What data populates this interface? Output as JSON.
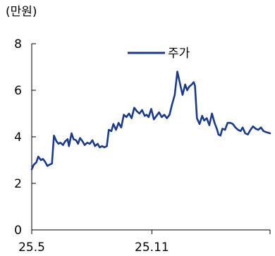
{
  "chart_data": {
    "type": "line",
    "unit_label": "(만원)",
    "title": "",
    "xlabel": "",
    "ylabel": "",
    "ylim": [
      0,
      8
    ],
    "yticks": [
      0,
      2,
      4,
      6,
      8
    ],
    "xlim": [
      "2025-05-01",
      "2026-05-01"
    ],
    "xticks": [
      {
        "label": "25.5",
        "date": "2025-05-01"
      },
      {
        "label": "25.11",
        "date": "2025-11-01"
      },
      {
        "label": "",
        "date": "2026-05-01"
      }
    ],
    "grid": false,
    "legend": {
      "placement": "top-center"
    },
    "line_color": "#1a3a8c",
    "series": [
      {
        "name": "주가",
        "x": [
          "2025-05-01",
          "2025-05-04",
          "2025-05-08",
          "2025-05-11",
          "2025-05-15",
          "2025-05-18",
          "2025-05-21",
          "2025-05-25",
          "2025-05-28",
          "2025-06-01",
          "2025-06-04",
          "2025-06-08",
          "2025-06-11",
          "2025-06-14",
          "2025-06-18",
          "2025-06-21",
          "2025-06-25",
          "2025-06-27",
          "2025-07-01",
          "2025-07-04",
          "2025-07-08",
          "2025-07-11",
          "2025-07-14",
          "2025-07-18",
          "2025-07-21",
          "2025-07-25",
          "2025-07-29",
          "2025-08-02",
          "2025-08-06",
          "2025-08-10",
          "2025-08-13",
          "2025-08-17",
          "2025-08-20",
          "2025-08-24",
          "2025-08-27",
          "2025-08-31",
          "2025-09-03",
          "2025-09-07",
          "2025-09-11",
          "2025-09-15",
          "2025-09-19",
          "2025-09-23",
          "2025-09-27",
          "2025-10-01",
          "2025-10-05",
          "2025-10-09",
          "2025-10-13",
          "2025-10-17",
          "2025-10-21",
          "2025-10-24",
          "2025-10-27",
          "2025-10-31",
          "2025-11-04",
          "2025-11-08",
          "2025-11-12",
          "2025-11-16",
          "2025-11-20",
          "2025-11-24",
          "2025-11-28",
          "2025-12-02",
          "2025-12-06",
          "2025-12-10",
          "2025-12-14",
          "2025-12-18",
          "2025-12-22",
          "2025-12-25",
          "2025-12-28",
          "2026-01-01",
          "2026-01-04",
          "2026-01-06",
          "2026-01-09",
          "2026-01-13",
          "2026-01-17",
          "2026-01-20",
          "2026-01-24",
          "2026-01-28",
          "2026-02-01",
          "2026-02-05",
          "2026-02-09",
          "2026-02-11",
          "2026-02-14",
          "2026-02-17",
          "2026-02-21",
          "2026-02-25",
          "2026-03-01",
          "2026-03-05",
          "2026-03-09",
          "2026-03-13",
          "2026-03-17",
          "2026-03-20",
          "2026-03-24",
          "2026-03-28",
          "2026-04-01",
          "2026-04-05",
          "2026-04-09",
          "2026-04-13",
          "2026-04-17",
          "2026-04-21",
          "2026-04-25",
          "2026-05-01"
        ],
        "values": [
          2.6,
          2.8,
          2.9,
          3.15,
          3.0,
          3.05,
          2.95,
          2.75,
          2.8,
          2.85,
          4.05,
          3.8,
          3.7,
          3.75,
          3.65,
          3.8,
          3.9,
          3.6,
          4.15,
          3.9,
          3.85,
          3.7,
          3.95,
          3.8,
          3.65,
          3.75,
          3.7,
          3.85,
          3.6,
          3.7,
          3.55,
          3.6,
          3.55,
          3.6,
          4.3,
          4.25,
          4.55,
          4.3,
          4.6,
          4.4,
          4.95,
          4.85,
          5.0,
          4.8,
          5.25,
          5.1,
          5.0,
          5.15,
          4.9,
          4.95,
          4.85,
          5.2,
          4.75,
          4.9,
          5.05,
          4.85,
          4.95,
          4.8,
          4.95,
          5.4,
          5.8,
          6.8,
          6.3,
          5.8,
          6.25,
          6.0,
          6.15,
          6.25,
          6.35,
          6.2,
          4.8,
          4.55,
          4.9,
          4.7,
          4.8,
          4.5,
          5.0,
          4.6,
          4.3,
          4.1,
          4.05,
          4.35,
          4.3,
          4.6,
          4.6,
          4.55,
          4.4,
          4.3,
          4.25,
          4.4,
          4.15,
          4.1,
          4.3,
          4.45,
          4.35,
          4.3,
          4.4,
          4.25,
          4.2,
          4.15
        ]
      }
    ]
  }
}
